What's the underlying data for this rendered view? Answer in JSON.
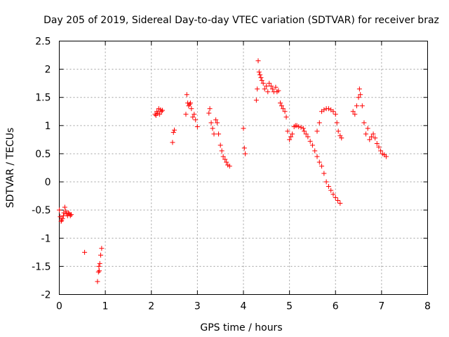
{
  "chart_data": {
    "type": "scatter",
    "title": "Day 205 of 2019, Sidereal Day-to-day VTEC variation (SDTVAR) for receiver braz",
    "xlabel": "GPS time / hours",
    "ylabel": "SDTVAR / TECUs",
    "xlim": [
      0,
      8
    ],
    "ylim": [
      -2,
      2.5
    ],
    "xticks": [
      0,
      1,
      2,
      3,
      4,
      5,
      6,
      7,
      8
    ],
    "xtick_labels": [
      "0",
      "1",
      "2",
      "3",
      "4",
      "5",
      "6",
      "7",
      "8"
    ],
    "yticks": [
      -2,
      -1.5,
      -1,
      -0.5,
      0,
      0.5,
      1,
      1.5,
      2,
      2.5
    ],
    "ytick_labels": [
      "-2",
      "-1.5",
      "-1",
      "-0.5",
      "0",
      "0.5",
      "1",
      "1.5",
      "2",
      "2.5"
    ],
    "grid": true,
    "marker": "plus",
    "series": [
      {
        "name": "SDTVAR",
        "color": "#ff0000",
        "x": [
          0.0,
          0.02,
          0.04,
          0.05,
          0.07,
          0.09,
          0.1,
          0.12,
          0.14,
          0.16,
          0.18,
          0.2,
          0.22,
          0.24,
          0.26,
          0.55,
          0.83,
          0.85,
          0.86,
          0.87,
          0.88,
          0.9,
          0.92,
          2.08,
          2.1,
          2.12,
          2.14,
          2.16,
          2.18,
          2.2,
          2.22,
          2.24,
          2.46,
          2.48,
          2.5,
          2.75,
          2.77,
          2.79,
          2.81,
          2.83,
          2.85,
          2.87,
          2.9,
          2.93,
          2.96,
          3.0,
          3.25,
          3.27,
          3.3,
          3.33,
          3.36,
          3.4,
          3.43,
          3.46,
          3.5,
          3.53,
          3.56,
          3.6,
          3.63,
          3.66,
          3.7,
          4.0,
          4.02,
          4.04,
          4.28,
          4.3,
          4.32,
          4.34,
          4.36,
          4.38,
          4.4,
          4.43,
          4.46,
          4.5,
          4.53,
          4.56,
          4.6,
          4.63,
          4.66,
          4.7,
          4.73,
          4.76,
          4.8,
          4.83,
          4.86,
          4.9,
          4.93,
          4.96,
          5.0,
          5.03,
          5.06,
          5.1,
          5.13,
          5.16,
          5.2,
          5.25,
          5.3,
          5.32,
          5.36,
          5.4,
          5.45,
          5.5,
          5.55,
          5.6,
          5.65,
          5.7,
          5.75,
          5.8,
          5.85,
          5.9,
          5.95,
          6.0,
          6.05,
          6.1,
          5.6,
          5.65,
          5.7,
          5.75,
          5.8,
          5.85,
          5.9,
          5.95,
          6.0,
          6.03,
          6.06,
          6.1,
          6.13,
          6.38,
          6.42,
          6.46,
          6.5,
          6.52,
          6.54,
          6.58,
          6.62,
          6.66,
          6.7,
          6.74,
          6.78,
          6.82,
          6.86,
          6.9,
          6.94,
          6.98,
          7.02,
          7.06,
          7.1
        ],
        "y": [
          -0.5,
          -0.62,
          -0.7,
          -0.68,
          -0.65,
          -0.6,
          -0.55,
          -0.45,
          -0.52,
          -0.57,
          -0.6,
          -0.55,
          -0.57,
          -0.6,
          -0.58,
          -1.25,
          -1.77,
          -1.6,
          -1.5,
          -1.58,
          -1.45,
          -1.3,
          -1.18,
          1.2,
          1.18,
          1.25,
          1.22,
          1.3,
          1.2,
          1.28,
          1.25,
          1.27,
          0.7,
          0.88,
          0.92,
          1.2,
          1.55,
          1.4,
          1.35,
          1.38,
          1.4,
          1.3,
          1.15,
          1.2,
          1.1,
          0.98,
          1.22,
          1.3,
          1.05,
          0.95,
          0.85,
          1.1,
          1.05,
          0.85,
          0.65,
          0.55,
          0.45,
          0.4,
          0.35,
          0.3,
          0.28,
          0.95,
          0.6,
          0.5,
          1.45,
          1.65,
          2.15,
          1.95,
          1.9,
          1.85,
          1.8,
          1.75,
          1.65,
          1.7,
          1.6,
          1.75,
          1.7,
          1.65,
          1.6,
          1.68,
          1.6,
          1.62,
          1.4,
          1.35,
          1.3,
          1.25,
          1.15,
          0.9,
          0.75,
          0.8,
          0.85,
          0.98,
          1.0,
          1.0,
          0.98,
          0.97,
          0.95,
          0.9,
          0.85,
          0.8,
          0.72,
          0.65,
          0.55,
          0.45,
          0.35,
          0.28,
          0.15,
          0.0,
          -0.08,
          -0.15,
          -0.22,
          -0.28,
          -0.33,
          -0.38,
          0.9,
          1.05,
          1.25,
          1.28,
          1.3,
          1.3,
          1.28,
          1.25,
          1.2,
          1.05,
          0.9,
          0.82,
          0.78,
          1.25,
          1.2,
          1.35,
          1.5,
          1.65,
          1.55,
          1.35,
          1.05,
          0.85,
          0.95,
          0.75,
          0.8,
          0.85,
          0.78,
          0.68,
          0.62,
          0.55,
          0.5,
          0.48,
          0.45
        ]
      }
    ]
  }
}
